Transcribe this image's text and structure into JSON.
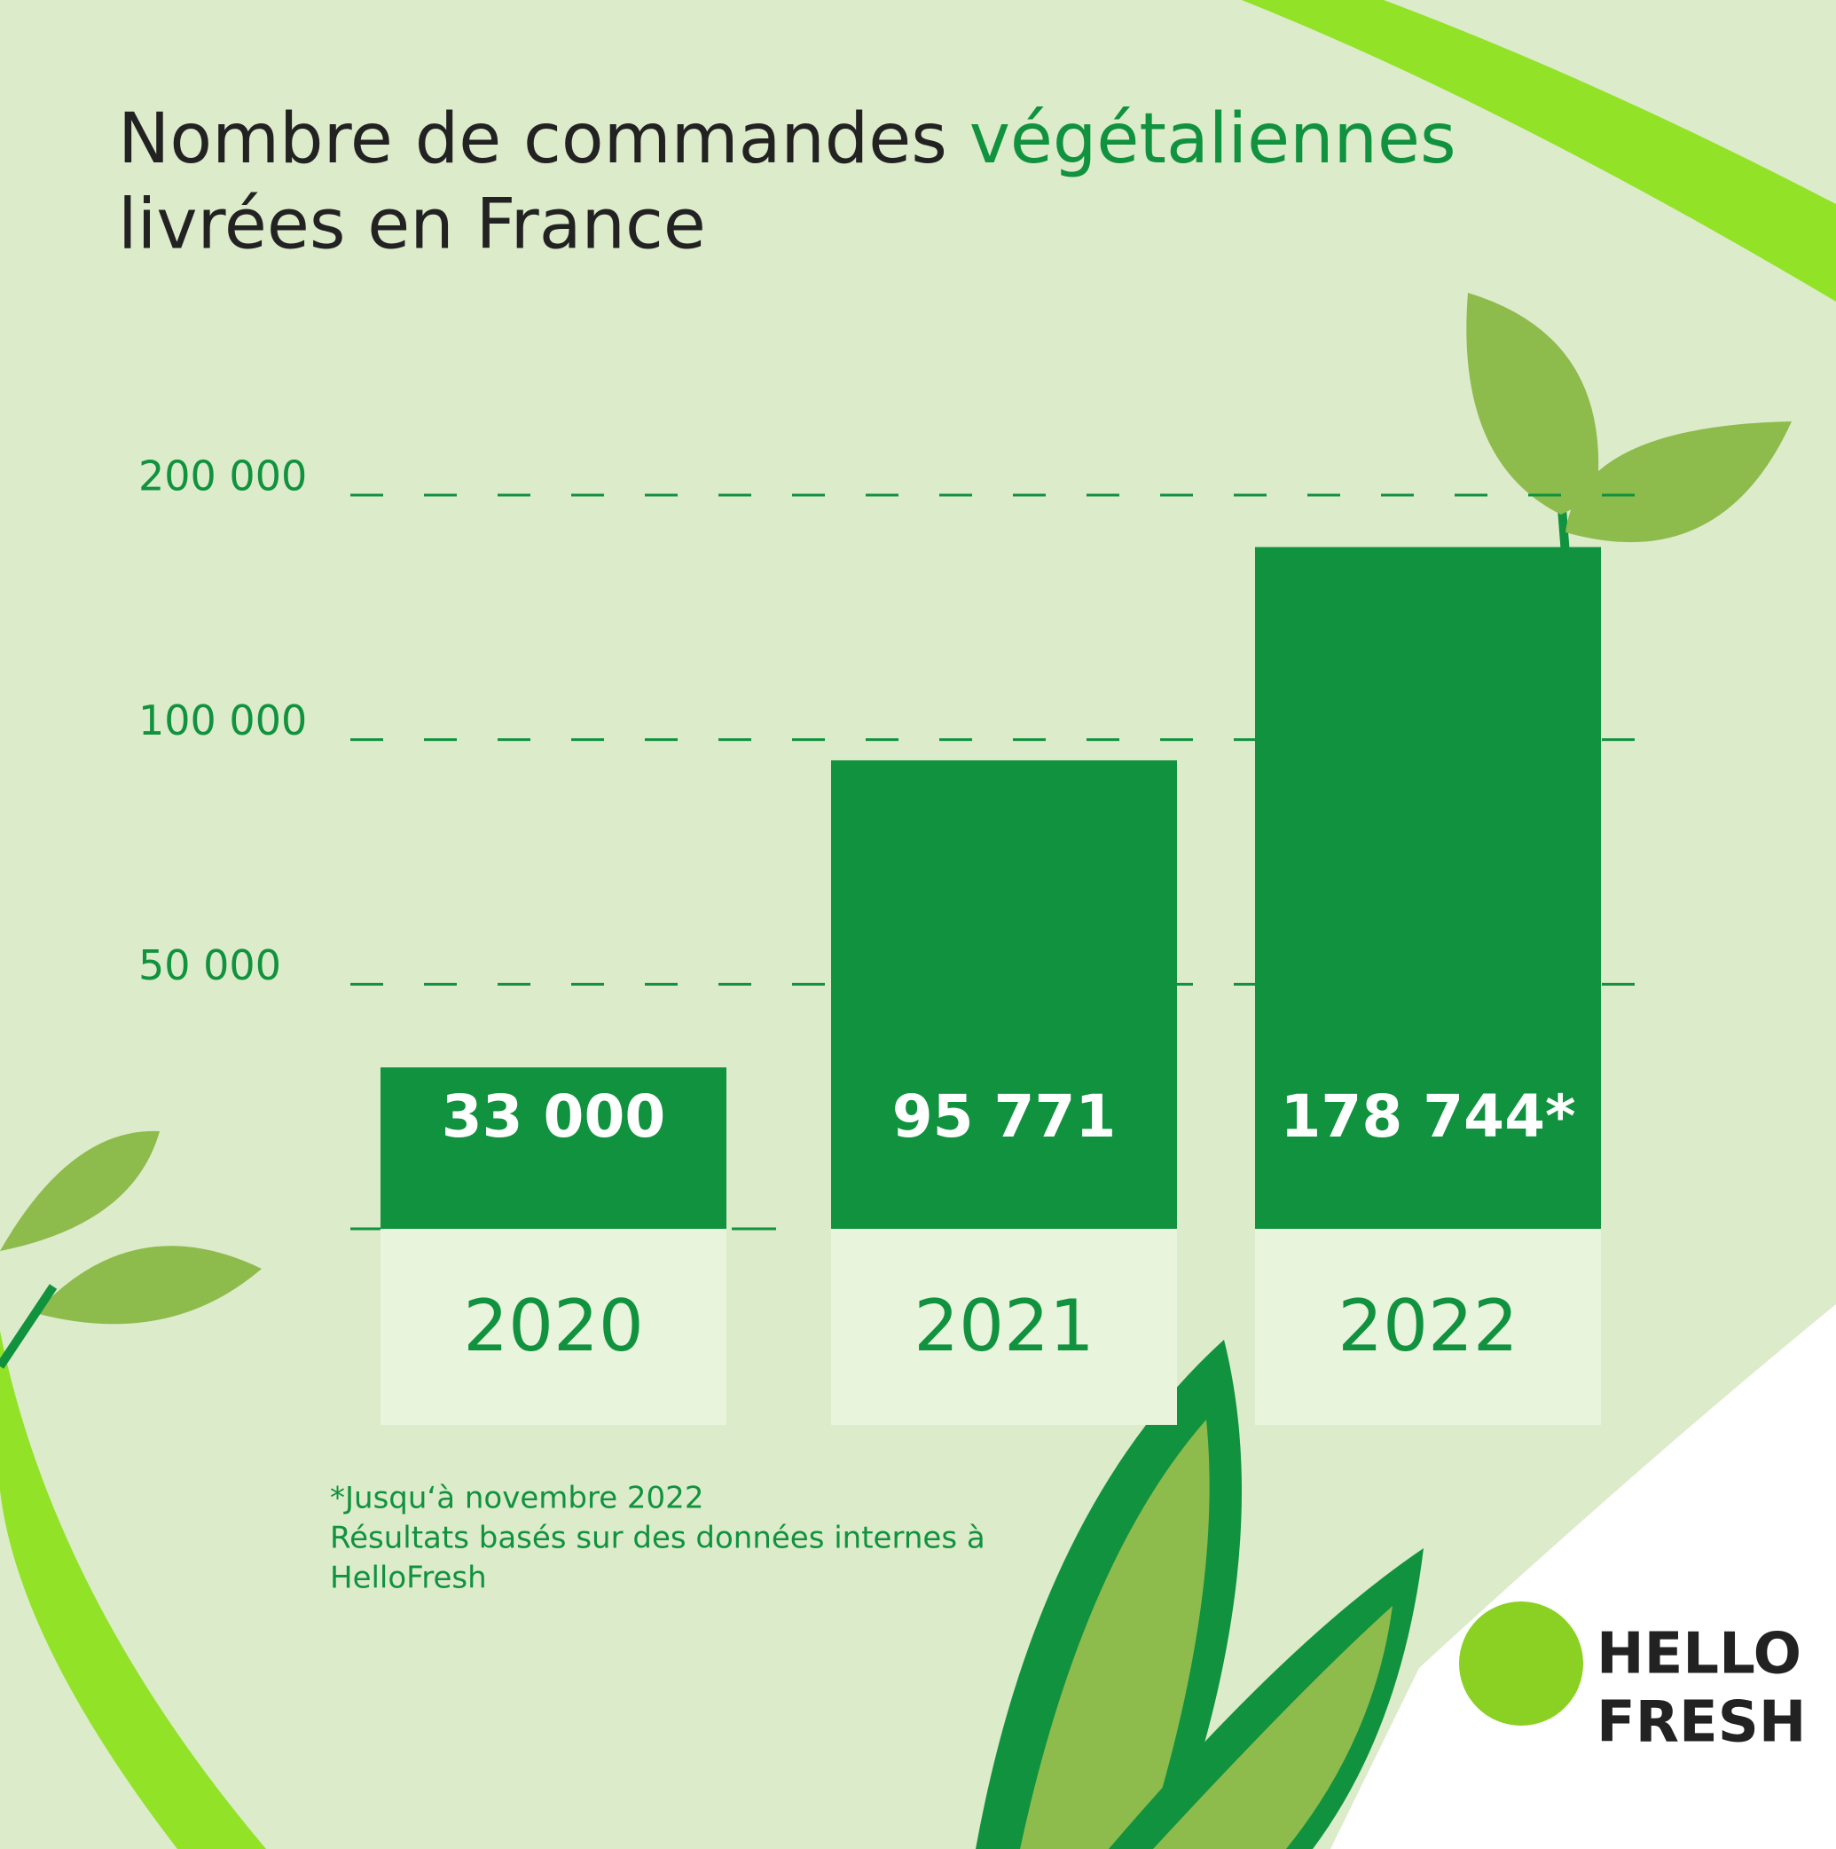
{
  "chart_data": {
    "type": "bar",
    "title_line1": "Nombre de commandes",
    "title_highlight": "végétaliennes",
    "title_line2": "livrées en France",
    "categories": [
      "2020",
      "2021",
      "2022"
    ],
    "values": [
      33000,
      95771,
      178744
    ],
    "value_labels": [
      "33 000",
      "95 771",
      "178 744*"
    ],
    "color": "#10923f",
    "ylim": [
      0,
      200000
    ],
    "yticks": [
      {
        "value": 50000,
        "label": "50 000"
      },
      {
        "value": 100000,
        "label": "100 000"
      },
      {
        "value": 200000,
        "label": "200 000"
      }
    ],
    "grid": true,
    "footnotes": [
      "*Jusqu‘à novembre 2022",
      "Résultats basés sur des données internes à",
      "HelloFresh"
    ],
    "logo": [
      "HELLO",
      "FRESH"
    ]
  }
}
